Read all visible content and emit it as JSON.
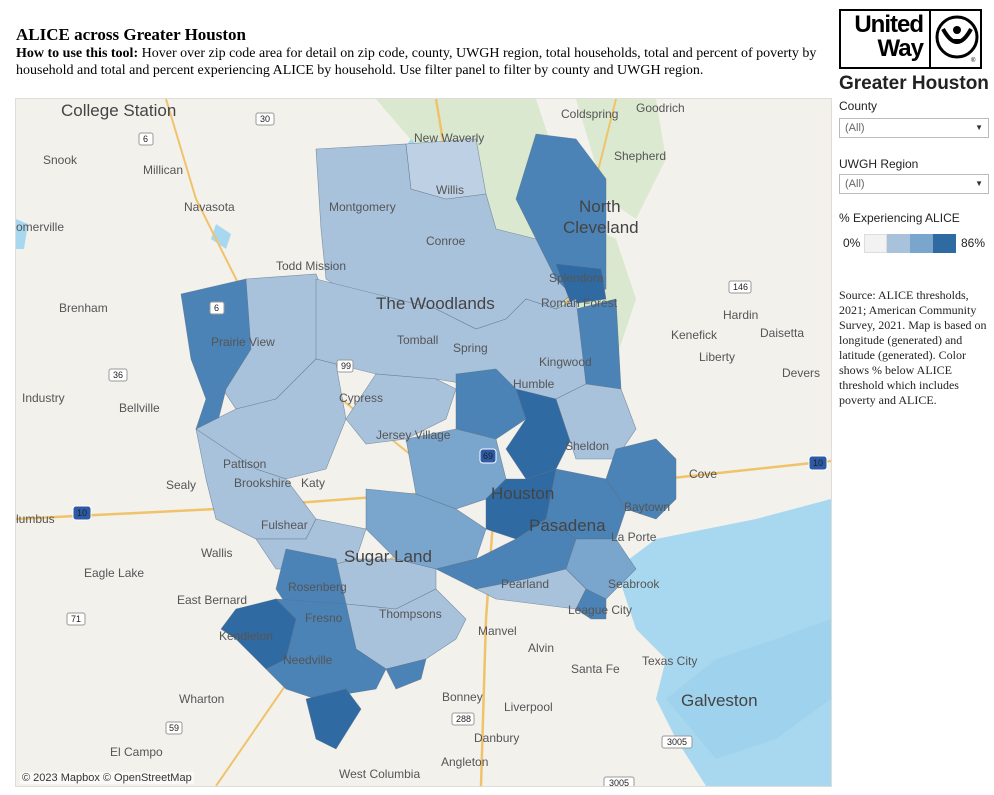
{
  "header": {
    "title": "ALICE across Greater Houston",
    "howto_label": "How to use this tool:",
    "howto_text": " Hover over zip code area for detail on zip code,  county, UWGH region, total households, total and percent of poverty by household and total and percent experiencing ALICE by household. Use filter panel to filter by county and UWGH region."
  },
  "logo": {
    "line1": "United",
    "line2": "Way",
    "subtitle": "Greater Houston"
  },
  "filters": {
    "county_label": "County",
    "county_value": "(All)",
    "region_label": "UWGH Region",
    "region_value": "(All)"
  },
  "legend": {
    "title": "% Experiencing ALICE",
    "min_label": "0%",
    "max_label": "86%",
    "colors": [
      "#f2f2f2",
      "#a9c2dc",
      "#7aa5cc",
      "#4b83b6",
      "#2f6aa3"
    ]
  },
  "source_note": "Source: ALICE thresholds, 2021; American Community Survey, 2021. Map is based on longitude (generated) and latitude (generated). Color shows % below ALICE threshold which includes poverty and ALICE.",
  "map": {
    "attribution": "© 2023 Mapbox  © OpenStreetMap",
    "places": {
      "college_station": "College Station",
      "goodrich": "Goodrich",
      "new_waverly": "New Waverly",
      "coldspring": "Coldspring",
      "shepherd": "Shepherd",
      "snook": "Snook",
      "millican": "Millican",
      "navasota": "Navasota",
      "somerville": "omerville",
      "north_cleveland": "North",
      "north_cleveland_2": "Cleveland",
      "todd_mission": "Todd Mission",
      "willis": "Willis",
      "montgomery": "Montgomery",
      "conroe": "Conroe",
      "splendora": "Splendora",
      "roman_forest": "Roman Forest",
      "woodlands": "The Woodlands",
      "brenham": "Brenham",
      "prairie_view": "Prairie View",
      "hardin": "Hardin",
      "kenefick": "Kenefick",
      "daisetta": "Daisetta",
      "liberty": "Liberty",
      "devers": "Devers",
      "industry": "Industry",
      "bellville": "Bellville",
      "cypress": "Cypress",
      "humble": "Humble",
      "tomball": "Tomball",
      "spring": "Spring",
      "kingwood": "Kingwood",
      "sheldon": "Sheldon",
      "jersey_village": "Jersey Village",
      "pattison": "Pattison",
      "brookshire": "Brookshire",
      "katy": "Katy",
      "sealy": "Sealy",
      "cove": "Cove",
      "houston": "Houston",
      "baytown": "Baytown",
      "columbus": "lumbus",
      "fulshear": "Fulshear",
      "pasadena": "Pasadena",
      "la_porte": "La Porte",
      "wallis": "Wallis",
      "sugar_land": "Sugar Land",
      "eagle_lake": "Eagle Lake",
      "pearland": "Pearland",
      "seabrook": "Seabrook",
      "east_bernard": "East Bernard",
      "rosenberg": "Rosenberg",
      "league_city": "League City",
      "kendleton": "Kendleton",
      "fresno": "Fresno",
      "thompsons": "Thompsons",
      "manvel": "Manvel",
      "alvin": "Alvin",
      "needville": "Needville",
      "santa_fe": "Santa Fe",
      "texas_city": "Texas City",
      "wharton": "Wharton",
      "galveston": "Galveston",
      "bonney": "Bonney",
      "liverpool": "Liverpool",
      "el_campo": "El Campo",
      "danbury": "Danbury",
      "angleton": "Angleton",
      "west_columbia": "West Columbia"
    },
    "road_shields": [
      "30",
      "6",
      "6",
      "146",
      "36",
      "99",
      "10",
      "10",
      "69",
      "71",
      "288",
      "59",
      "3005",
      "3005"
    ]
  }
}
